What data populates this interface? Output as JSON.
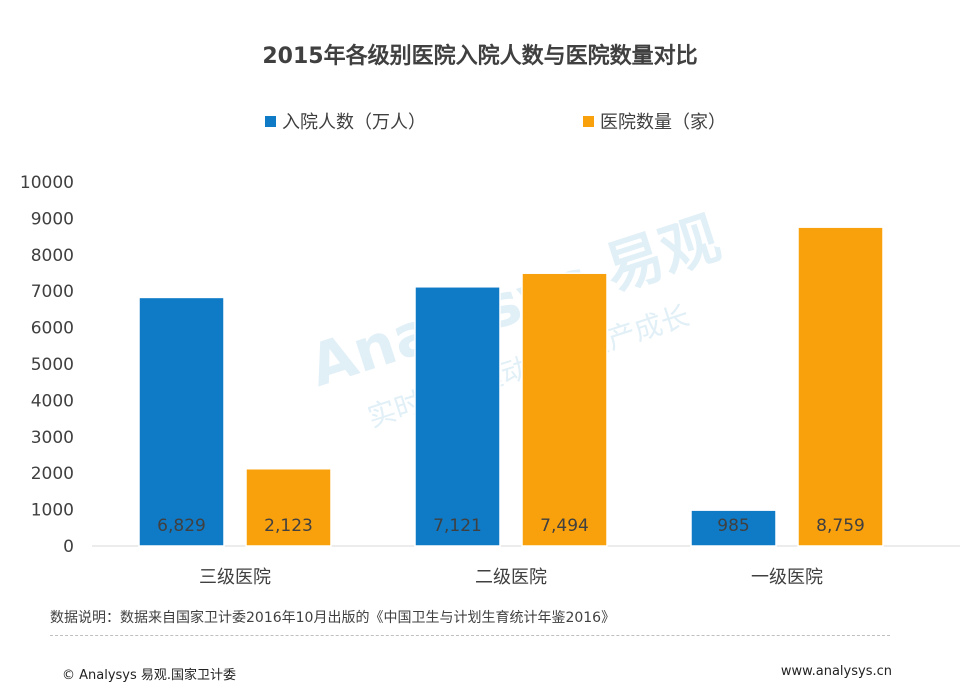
{
  "chart_data": {
    "type": "bar",
    "title": "2015年各级别医院入院人数与医院数量对比",
    "categories": [
      "三级医院",
      "二级医院",
      "一级医院"
    ],
    "series": [
      {
        "name": "入院人数（万人）",
        "color": "#0f7ac6",
        "values": [
          6829,
          7121,
          985
        ],
        "labels": [
          "6,829",
          "7,121",
          "985"
        ]
      },
      {
        "name": "医院数量（家）",
        "color": "#f9a10c",
        "values": [
          2123,
          7494,
          8759
        ],
        "labels": [
          "2,123",
          "7,494",
          "8,759"
        ]
      }
    ],
    "ylim": [
      0,
      10000
    ],
    "yticks": [
      0,
      1000,
      2000,
      3000,
      4000,
      5000,
      6000,
      7000,
      8000,
      9000,
      10000
    ],
    "ytick_labels": [
      "0",
      "1000",
      "2000",
      "3000",
      "4000",
      "5000",
      "6000",
      "7000",
      "8000",
      "9000",
      "10000"
    ],
    "grid": false,
    "legend_position": "top"
  },
  "footnote": "数据说明：数据来自国家卫计委2016年10月出版的《中国卫生与计划生育统计年鉴2016》",
  "footer": {
    "copyright": "© Analysys 易观.国家卫计委",
    "website": "www.analysys.cn"
  },
  "watermark": {
    "brand": "Analysys 易观",
    "slogan": "实时分析驱动用户资产成长"
  }
}
